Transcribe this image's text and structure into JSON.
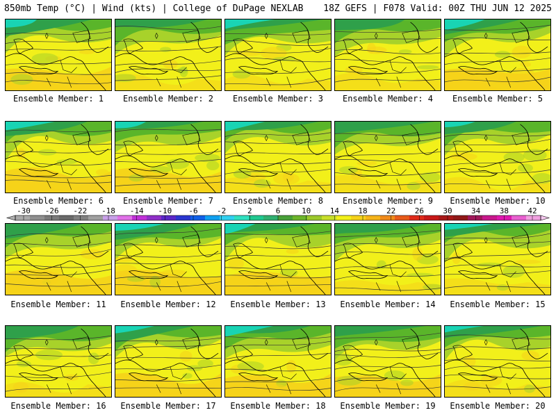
{
  "header": {
    "left": "850mb Temp (°C) | Wind (kts) | College of DuPage NEXLAB",
    "right": "18Z GEFS | F078 Valid: 00Z THU JUN 12 2025"
  },
  "caption_prefix": "Ensemble Member: ",
  "members": [
    {
      "label": "Ensemble Member: 1",
      "variant": 1
    },
    {
      "label": "Ensemble Member: 2",
      "variant": 2
    },
    {
      "label": "Ensemble Member: 3",
      "variant": 3
    },
    {
      "label": "Ensemble Member: 4",
      "variant": 4
    },
    {
      "label": "Ensemble Member: 5",
      "variant": 5
    },
    {
      "label": "Ensemble Member: 6",
      "variant": 6
    },
    {
      "label": "Ensemble Member: 7",
      "variant": 7
    },
    {
      "label": "Ensemble Member: 8",
      "variant": 8
    },
    {
      "label": "Ensemble Member: 9",
      "variant": 9
    },
    {
      "label": "Ensemble Member: 10",
      "variant": 10
    },
    {
      "label": "Ensemble Member: 11",
      "variant": 11
    },
    {
      "label": "Ensemble Member: 12",
      "variant": 12
    },
    {
      "label": "Ensemble Member: 13",
      "variant": 13
    },
    {
      "label": "Ensemble Member: 14",
      "variant": 14
    },
    {
      "label": "Ensemble Member: 15",
      "variant": 15
    },
    {
      "label": "Ensemble Member: 16",
      "variant": 16
    },
    {
      "label": "Ensemble Member: 17",
      "variant": 17
    },
    {
      "label": "Ensemble Member: 18",
      "variant": 18
    },
    {
      "label": "Ensemble Member: 19",
      "variant": 19
    },
    {
      "label": "Ensemble Member: 20",
      "variant": 20
    }
  ],
  "colorbar": {
    "labels": [
      "-30",
      "-26",
      "-22",
      "-18",
      "-14",
      "-10",
      "-6",
      "-2",
      "2",
      "6",
      "10",
      "14",
      "18",
      "22",
      "26",
      "30",
      "34",
      "38",
      "42"
    ],
    "colors": [
      "#a9a9a9",
      "#8f8f8f",
      "#7a7a7a",
      "#6a6a6a",
      "#808080",
      "#a0a0a0",
      "#c8a0e8",
      "#e070e8",
      "#c030d8",
      "#8f2fc8",
      "#5a27c8",
      "#2a36d0",
      "#1060e8",
      "#10a0f0",
      "#30d0f0",
      "#30e0c0",
      "#20c890",
      "#30b070",
      "#48a038",
      "#6cb52a",
      "#9cc92c",
      "#c8df2a",
      "#f2f01a",
      "#f5d21a",
      "#f5b41a",
      "#f08a1a",
      "#e85a1a",
      "#e02a1a",
      "#c81818",
      "#a81818",
      "#901818",
      "#a0185a",
      "#c8188c",
      "#e018b0",
      "#e860d0",
      "#f0a0e0"
    ]
  },
  "palette": {
    "teal": "#19d4b4",
    "green_dark": "#2fa04a",
    "green": "#5ab52a",
    "yellow_green": "#a8d22a",
    "yellow": "#f2f01a",
    "gold": "#f5d21a",
    "orange": "#f5b41a"
  }
}
